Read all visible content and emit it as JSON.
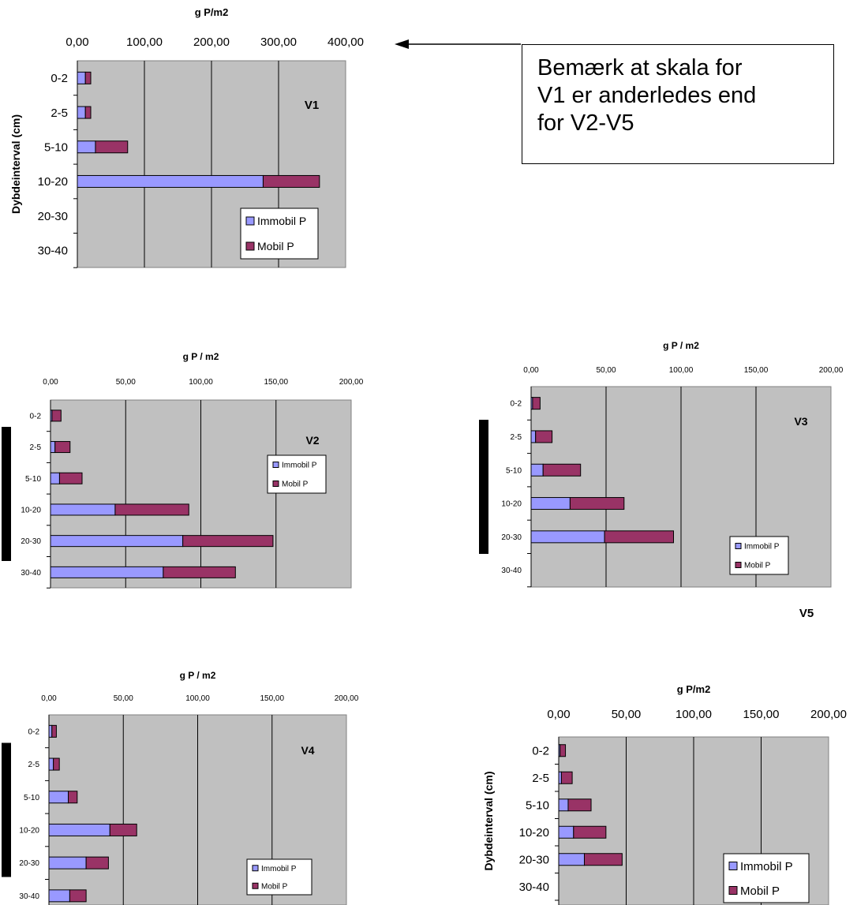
{
  "note": {
    "lines": [
      "Bemærk at skala for",
      "V1 er anderledes end",
      "for V2-V5"
    ]
  },
  "colors": {
    "plot_bg": "#c0c0c0",
    "immobil": "#9999ff",
    "mobil": "#993366",
    "gridline": "#000000"
  },
  "chart_data": [
    {
      "id": "V1",
      "type": "bar",
      "orientation": "horizontal",
      "stacked": true,
      "title": "V1",
      "xlabel": "g P/m2",
      "ylabel": "Dybdeinterval (cm)",
      "xlim": [
        0,
        400
      ],
      "xticks": [
        "0,00",
        "100,00",
        "200,00",
        "300,00",
        "400,00"
      ],
      "categories": [
        "0-2",
        "2-5",
        "5-10",
        "10-20",
        "20-30",
        "30-40"
      ],
      "series": [
        {
          "name": "Immobil P",
          "color": "#9999ff",
          "values": [
            12,
            12,
            27,
            277,
            0,
            0
          ]
        },
        {
          "name": "Mobil P",
          "color": "#993366",
          "values": [
            8,
            8,
            48,
            84,
            0,
            0
          ]
        }
      ],
      "grid": true,
      "legend_position": "bottom-right"
    },
    {
      "id": "V2",
      "type": "bar",
      "orientation": "horizontal",
      "stacked": true,
      "title": "V2",
      "xlabel": "g P / m2",
      "ylabel": "",
      "xlim": [
        0,
        200
      ],
      "xticks": [
        "0,00",
        "50,00",
        "100,00",
        "150,00",
        "200,00"
      ],
      "categories": [
        "0-2",
        "2-5",
        "5-10",
        "10-20",
        "20-30",
        "30-40"
      ],
      "series": [
        {
          "name": "Immobil P",
          "color": "#9999ff",
          "values": [
            1,
            3,
            6,
            43,
            88,
            75
          ]
        },
        {
          "name": "Mobil P",
          "color": "#993366",
          "values": [
            6,
            10,
            15,
            49,
            60,
            48
          ]
        }
      ],
      "grid": true,
      "legend_position": "top-right"
    },
    {
      "id": "V3",
      "type": "bar",
      "orientation": "horizontal",
      "stacked": true,
      "title": "V3",
      "xlabel": "g P / m2",
      "ylabel": "",
      "xlim": [
        0,
        200
      ],
      "xticks": [
        "0,00",
        "50,00",
        "100,00",
        "150,00",
        "200,00"
      ],
      "categories": [
        "0-2",
        "2-5",
        "5-10",
        "10-20",
        "20-30",
        "30-40"
      ],
      "series": [
        {
          "name": "Immobil P",
          "color": "#9999ff",
          "values": [
            1,
            3,
            8,
            26,
            49,
            0
          ]
        },
        {
          "name": "Mobil P",
          "color": "#993366",
          "values": [
            5,
            11,
            25,
            36,
            46,
            0
          ]
        }
      ],
      "grid": true,
      "legend_position": "bottom-right"
    },
    {
      "id": "V4",
      "type": "bar",
      "orientation": "horizontal",
      "stacked": true,
      "title": "V4",
      "xlabel": "g P / m2",
      "ylabel": "",
      "xlim": [
        0,
        200
      ],
      "xticks": [
        "0,00",
        "50,00",
        "100,00",
        "150,00",
        "200,00"
      ],
      "categories": [
        "0-2",
        "2-5",
        "5-10",
        "10-20",
        "20-30",
        "30-40"
      ],
      "series": [
        {
          "name": "Immobil P",
          "color": "#9999ff",
          "values": [
            2,
            3,
            13,
            41,
            25,
            14
          ]
        },
        {
          "name": "Mobil P",
          "color": "#993366",
          "values": [
            3,
            4,
            6,
            18,
            15,
            11
          ]
        }
      ],
      "grid": true,
      "legend_position": "bottom-right"
    },
    {
      "id": "V5",
      "type": "bar",
      "orientation": "horizontal",
      "stacked": true,
      "title": "V5",
      "xlabel": "g P/m2",
      "ylabel": "Dybdeinterval (cm)",
      "xlim": [
        0,
        200
      ],
      "xticks": [
        "0,00",
        "50,00",
        "100,00",
        "150,00",
        "200,00"
      ],
      "categories": [
        "0-2",
        "2-5",
        "5-10",
        "10-20",
        "20-30",
        "30-40"
      ],
      "series": [
        {
          "name": "Immobil P",
          "color": "#9999ff",
          "values": [
            1,
            2,
            7,
            11,
            19,
            0
          ]
        },
        {
          "name": "Mobil P",
          "color": "#993366",
          "values": [
            4,
            8,
            17,
            24,
            28,
            0
          ]
        }
      ],
      "grid": true,
      "legend_position": "bottom-right"
    }
  ]
}
